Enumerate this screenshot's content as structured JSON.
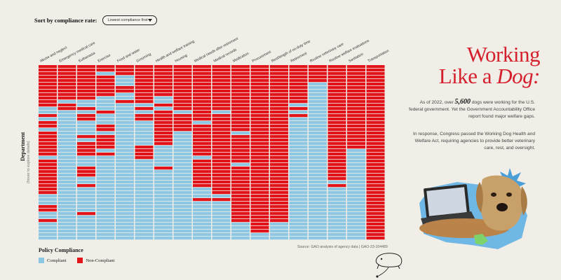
{
  "sort": {
    "label": "Sort by compliance rate:",
    "selected": "Lowest compliance first"
  },
  "title": {
    "line1": "Working",
    "line2_prefix": "Like a ",
    "line2_italic": "Dog:"
  },
  "intro": {
    "p1_before": "As of 2022, over ",
    "p1_number": "5,600",
    "p1_after": " dogs were working for the U.S. federal government. Yet the Government Accountability Office report found major welfare gaps.",
    "p2": "In response, Congress passed the Working Dog Health and Welfare Act, requiring agencies to provide better veterinary care, rest, and oversight."
  },
  "yaxis": {
    "title": "Department",
    "hint": "(hover to explore details)"
  },
  "legend": {
    "title": "Policy Compliance",
    "compliant": "Compliant",
    "noncompliant": "Non-Compliant"
  },
  "source": "Source: GAO analysis of agency data | GAO-23-104489",
  "colors": {
    "compliant": "#8ec7e3",
    "noncompliant": "#e1141b",
    "background": "#f1ede7",
    "accent": "#d5212d"
  },
  "chart_data": {
    "type": "heatmap",
    "categories": [
      "Abuse and neglect",
      "Emergency medical care",
      "Euthanasia",
      "Exercise",
      "Food and water",
      "Grooming",
      "Health and welfare training",
      "Housing",
      "Medical needs after retirement",
      "Medical records",
      "Medication",
      "Procurement",
      "Rest/length of on-duty time",
      "Retirement",
      "Routine veterinary care",
      "Routine welfare evaluations",
      "Sanitation",
      "Transportation"
    ],
    "departments_count": 50,
    "values_legend": {
      "1": "Compliant",
      "0": "Non-Compliant"
    },
    "noncompliant_rows": [
      [
        0,
        1,
        2,
        3,
        4,
        5,
        6,
        7,
        8,
        9,
        10,
        11,
        14,
        16,
        17,
        19,
        20,
        21,
        22,
        23,
        24,
        25,
        27,
        28,
        29,
        30,
        31,
        32,
        33,
        34,
        35,
        36,
        40,
        41,
        44
      ],
      [
        0,
        1,
        2,
        3,
        4,
        5,
        6,
        7,
        8,
        9,
        11,
        12
      ],
      [
        0,
        1,
        2,
        3,
        4,
        5,
        6,
        7,
        8,
        9,
        12,
        14,
        15,
        20,
        22,
        23,
        24,
        25,
        29,
        30,
        31,
        34,
        42
      ],
      [
        0,
        1,
        3,
        4,
        5,
        6,
        7,
        8,
        13,
        17,
        18,
        20,
        21,
        22,
        23,
        25
      ],
      [
        0,
        1,
        2,
        6,
        7,
        10
      ],
      [
        0,
        1,
        2,
        3,
        4,
        5,
        6,
        7,
        8,
        9,
        10,
        12,
        14,
        15,
        23,
        24,
        25,
        26
      ],
      [
        0,
        1,
        2,
        3,
        4,
        5,
        6,
        7,
        8,
        11,
        13,
        14,
        15,
        16,
        17,
        18,
        19,
        20,
        21,
        22,
        29
      ],
      [
        0,
        1,
        2,
        3,
        4,
        5,
        6,
        7,
        8,
        9,
        10,
        11,
        12,
        14,
        15,
        16,
        17,
        18
      ],
      [
        0,
        1,
        2,
        3,
        4,
        5,
        6,
        7,
        8,
        9,
        10,
        11,
        12,
        13,
        14,
        15,
        17,
        18,
        19,
        20,
        21,
        22,
        23,
        24,
        25,
        27,
        28,
        29,
        30,
        31,
        32,
        33,
        34,
        38
      ],
      [
        0,
        1,
        2,
        3,
        4,
        5,
        6,
        7,
        8,
        9,
        10,
        11,
        12,
        14,
        15,
        16,
        17,
        18,
        19,
        20,
        21,
        22,
        23,
        24,
        25,
        26,
        27,
        28,
        29,
        30,
        31,
        32,
        33,
        34,
        35,
        36,
        38
      ],
      [
        0,
        1,
        2,
        3,
        4,
        5,
        6,
        7,
        8,
        9,
        10,
        11,
        12,
        13,
        14,
        15,
        16,
        17,
        18,
        20,
        21,
        22,
        23,
        24,
        25,
        26,
        27,
        29,
        30,
        31,
        32,
        33,
        34,
        35,
        36,
        37,
        38,
        39,
        40,
        41,
        42,
        43,
        44
      ],
      [
        0,
        1,
        2,
        3,
        4,
        5,
        6,
        7,
        8,
        9,
        10,
        11,
        12,
        13,
        14,
        15,
        16,
        17,
        18,
        19,
        20,
        21,
        22,
        23,
        24,
        25,
        26,
        27,
        28,
        29,
        30,
        31,
        32,
        33,
        34,
        35,
        36,
        37,
        38,
        39,
        40,
        41,
        42,
        43,
        44,
        45,
        46,
        47
      ],
      [
        0,
        1,
        2,
        3,
        4,
        5,
        6,
        7,
        8,
        9,
        10,
        11,
        12,
        13,
        14,
        15,
        16,
        17,
        18,
        19,
        20,
        21,
        22,
        23,
        24,
        25,
        26,
        27,
        28,
        29,
        30,
        31,
        32,
        33,
        34,
        35,
        36,
        37,
        38,
        39,
        40,
        41,
        42,
        43,
        44
      ],
      [
        0,
        1,
        2,
        3,
        4,
        5,
        6,
        7,
        8,
        9,
        10,
        12,
        14
      ],
      [
        0,
        1,
        2,
        3,
        4
      ],
      [
        0,
        1,
        2,
        3,
        4,
        5,
        6,
        7,
        8,
        9,
        10,
        11,
        12,
        13,
        14,
        15,
        16,
        17,
        18,
        19,
        20,
        21,
        22,
        23,
        24,
        25,
        26,
        27,
        28,
        29,
        30,
        31,
        32,
        34
      ],
      [
        0,
        1,
        2,
        3,
        4,
        5,
        6,
        7,
        8,
        9,
        10,
        11,
        12,
        13,
        14,
        15,
        16,
        17,
        18,
        19,
        20,
        21,
        22,
        23
      ],
      [
        0,
        1,
        2,
        3,
        4,
        5,
        6,
        7,
        8,
        9,
        10,
        11,
        12,
        13,
        14,
        15,
        16,
        17,
        18,
        19,
        20,
        21,
        22,
        23,
        24,
        25,
        26,
        27,
        28,
        29,
        30,
        31,
        32,
        33,
        34,
        35,
        36,
        37,
        38,
        39,
        40,
        41,
        42,
        43,
        44,
        45,
        46,
        47,
        48,
        49
      ]
    ]
  }
}
